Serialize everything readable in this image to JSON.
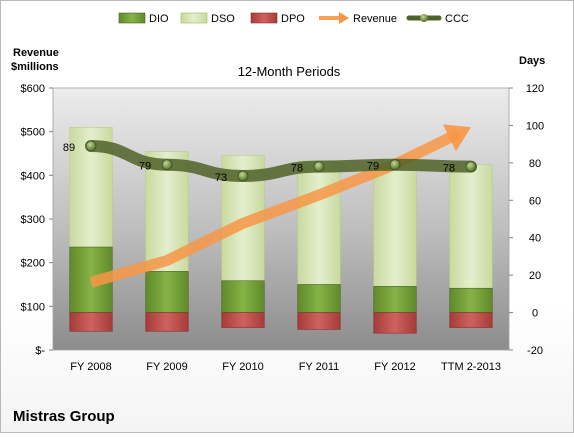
{
  "chart_data": {
    "type": "bar",
    "title": "12-Month Periods",
    "company": "Mistras Group",
    "left_axis_label_line1": "Revenue",
    "left_axis_label_line2": "$millions",
    "right_axis_label": "Days",
    "categories": [
      "FY 2008",
      "FY 2009",
      "FY 2010",
      "FY 2011",
      "FY 2012",
      "TTM 2-2013"
    ],
    "left_axis": {
      "min": 0,
      "max": 600,
      "ticks": [
        0,
        100,
        200,
        300,
        400,
        500,
        600
      ],
      "tick_labels": [
        "$-",
        "$100",
        "$200",
        "$300",
        "$400",
        "$500",
        "$600"
      ]
    },
    "right_axis": {
      "min": -20,
      "max": 120,
      "ticks": [
        -20,
        0,
        20,
        40,
        60,
        80,
        100,
        120
      ],
      "tick_labels": [
        "-20",
        "0",
        "20",
        "40",
        "60",
        "80",
        "100",
        "120"
      ]
    },
    "legend_position": "top",
    "grid": false,
    "series": [
      {
        "name": "DIO",
        "axis": "right",
        "kind": "stacked-bar",
        "color": "#77a43a",
        "values": [
          35,
          22,
          17,
          15,
          14,
          13
        ]
      },
      {
        "name": "DSO",
        "axis": "right",
        "kind": "stacked-bar",
        "color": "#d7e4b5",
        "values": [
          64,
          64,
          67,
          66,
          68,
          66
        ]
      },
      {
        "name": "DPO",
        "axis": "right",
        "kind": "negative-bar",
        "color": "#c0504d",
        "values": [
          -10,
          -10,
          -8,
          -9,
          -11,
          -8
        ]
      },
      {
        "name": "Revenue",
        "axis": "left",
        "kind": "arrow",
        "color": "#f79646",
        "values": [
          155,
          205,
          290,
          355,
          425,
          510
        ]
      },
      {
        "name": "CCC",
        "axis": "right",
        "kind": "line",
        "color": "#4f6228",
        "values": [
          89,
          79,
          73,
          78,
          79,
          78
        ],
        "labels": [
          "89",
          "79",
          "73",
          "78",
          "79",
          "78"
        ]
      }
    ]
  }
}
